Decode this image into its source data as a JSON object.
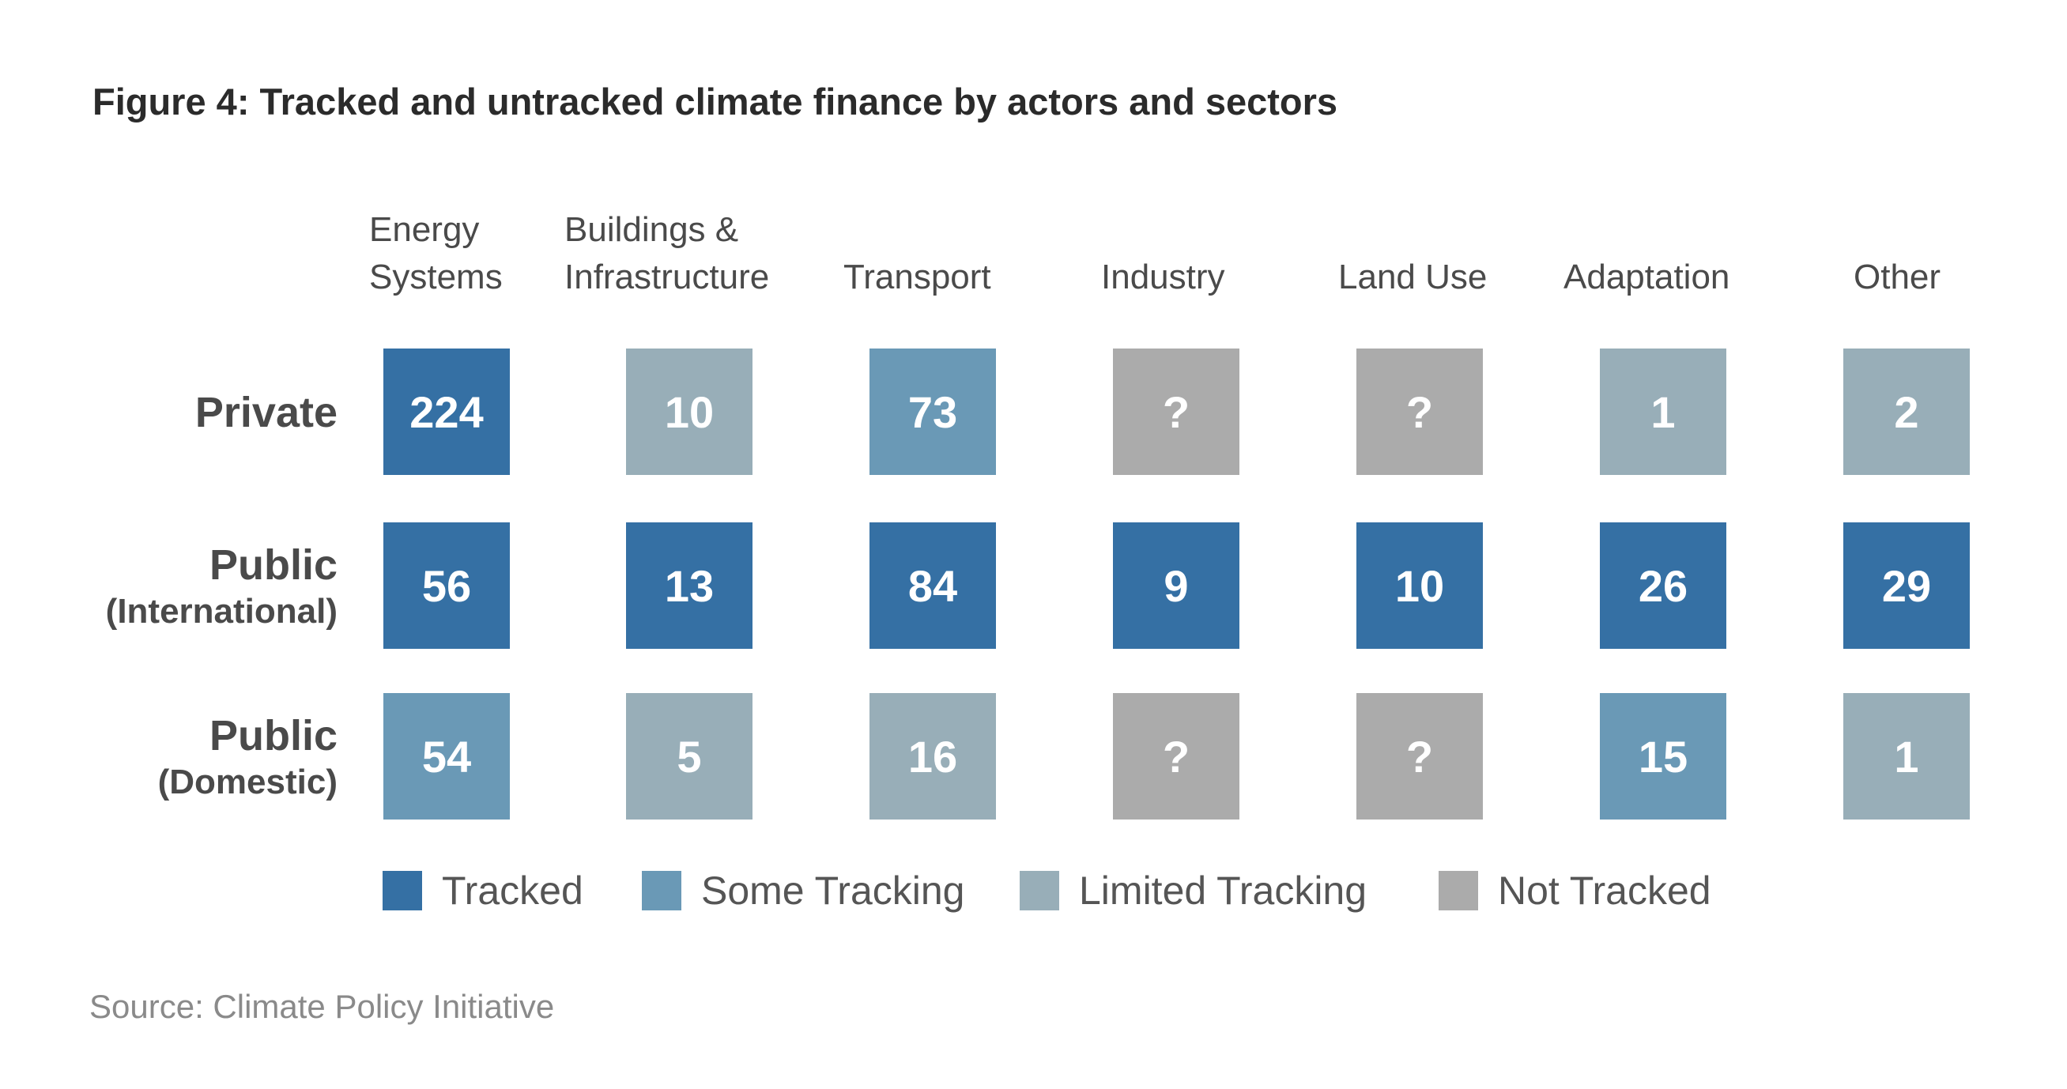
{
  "chart_data": {
    "type": "heatmap",
    "title": "Figure 4: Tracked and untracked climate finance by actors and sectors",
    "columns": [
      [
        "Energy",
        "Systems"
      ],
      [
        "Buildings &",
        "Infrastructure"
      ],
      [
        "Transport"
      ],
      [
        "Industry"
      ],
      [
        "Land Use"
      ],
      [
        "Adaptation"
      ],
      [
        "Other"
      ]
    ],
    "rows": [
      {
        "label": "Private",
        "sublabel": ""
      },
      {
        "label": "Public",
        "sublabel": "(International)"
      },
      {
        "label": "Public",
        "sublabel": "(Domestic)"
      }
    ],
    "values": [
      [
        "224",
        "10",
        "73",
        "?",
        "?",
        "1",
        "2"
      ],
      [
        "56",
        "13",
        "84",
        "9",
        "10",
        "26",
        "29"
      ],
      [
        "54",
        "5",
        "16",
        "?",
        "?",
        "15",
        "1"
      ]
    ],
    "status": [
      [
        "tracked",
        "limited",
        "some",
        "not",
        "not",
        "limited",
        "limited"
      ],
      [
        "tracked",
        "tracked",
        "tracked",
        "tracked",
        "tracked",
        "tracked",
        "tracked"
      ],
      [
        "some",
        "limited",
        "limited",
        "not",
        "not",
        "some",
        "limited"
      ]
    ],
    "legend": [
      {
        "key": "tracked",
        "label": "Tracked"
      },
      {
        "key": "some",
        "label": "Some Tracking"
      },
      {
        "key": "limited",
        "label": "Limited Tracking"
      },
      {
        "key": "not",
        "label": "Not Tracked"
      }
    ],
    "colors": {
      "tracked": "#3570a4",
      "some": "#6a99b6",
      "limited": "#98aeb8",
      "not": "#ababab"
    },
    "source": "Source: Climate Policy Initiative"
  }
}
